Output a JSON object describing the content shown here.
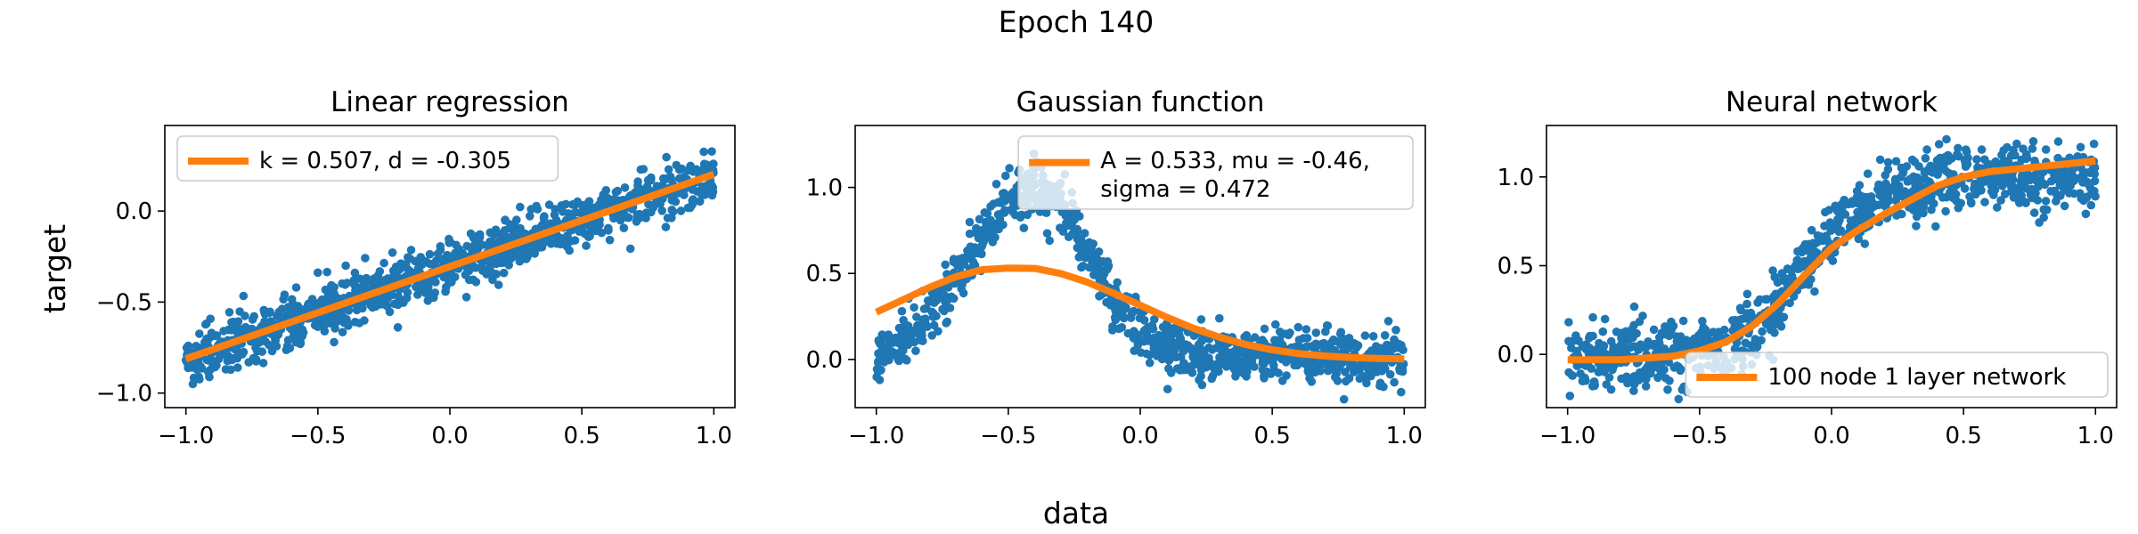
{
  "figure": {
    "suptitle": "Epoch 140",
    "shared_xlabel": "data",
    "shared_ylabel": "target"
  },
  "colors": {
    "scatter": "#1f77b4",
    "fit": "#ff7f0e",
    "axes": "#000000",
    "legend_border": "#cccccc"
  },
  "chart_data": [
    {
      "type": "scatter",
      "title": "Linear regression",
      "xlabel": "",
      "ylabel": "target",
      "xlim": [
        -1.08,
        1.08
      ],
      "ylim": [
        -1.08,
        0.47
      ],
      "xticks": [
        -1.0,
        -0.5,
        0.0,
        0.5,
        1.0
      ],
      "xtick_labels": [
        "−1.0",
        "−0.5",
        "0.0",
        "0.5",
        "1.0"
      ],
      "yticks": [
        -1.0,
        -0.5,
        0.0
      ],
      "ytick_labels": [
        "−1.0",
        "−0.5",
        "0.0"
      ],
      "legend": {
        "location": "upper left",
        "entries": [
          "k = 0.507, d = -0.305"
        ]
      },
      "scatter": {
        "n_points": 1000,
        "trend": [
          {
            "x": -1.0,
            "y": -0.81
          },
          {
            "x": -0.75,
            "y": -0.68
          },
          {
            "x": -0.5,
            "y": -0.56
          },
          {
            "x": -0.25,
            "y": -0.43
          },
          {
            "x": 0.0,
            "y": -0.3
          },
          {
            "x": 0.25,
            "y": -0.18
          },
          {
            "x": 0.5,
            "y": -0.05
          },
          {
            "x": 0.75,
            "y": 0.07
          },
          {
            "x": 1.0,
            "y": 0.2
          }
        ],
        "spread": 0.07
      },
      "fit_line": [
        {
          "x": -1.0,
          "y": -0.812
        },
        {
          "x": 1.0,
          "y": 0.202
        }
      ]
    },
    {
      "type": "scatter",
      "title": "Gaussian function",
      "xlabel": "",
      "ylabel": "",
      "xlim": [
        -1.08,
        1.08
      ],
      "ylim": [
        -0.28,
        1.36
      ],
      "xticks": [
        -1.0,
        -0.5,
        0.0,
        0.5,
        1.0
      ],
      "xtick_labels": [
        "−1.0",
        "−0.5",
        "0.0",
        "0.5",
        "1.0"
      ],
      "yticks": [
        0.0,
        0.5,
        1.0
      ],
      "ytick_labels": [
        "0.0",
        "0.5",
        "1.0"
      ],
      "legend": {
        "location": "upper right",
        "entries": [
          "A = 0.533, mu = -0.46,",
          "sigma = 0.472"
        ]
      },
      "scatter": {
        "n_points": 1000,
        "trend": [
          {
            "x": -1.0,
            "y": 0.02
          },
          {
            "x": -0.9,
            "y": 0.12
          },
          {
            "x": -0.8,
            "y": 0.27
          },
          {
            "x": -0.7,
            "y": 0.47
          },
          {
            "x": -0.6,
            "y": 0.7
          },
          {
            "x": -0.5,
            "y": 0.92
          },
          {
            "x": -0.4,
            "y": 1.0
          },
          {
            "x": -0.3,
            "y": 0.9
          },
          {
            "x": -0.2,
            "y": 0.62
          },
          {
            "x": -0.1,
            "y": 0.35
          },
          {
            "x": 0.0,
            "y": 0.16
          },
          {
            "x": 0.1,
            "y": 0.07
          },
          {
            "x": 0.2,
            "y": 0.03
          },
          {
            "x": 0.4,
            "y": 0.02
          },
          {
            "x": 0.6,
            "y": 0.03
          },
          {
            "x": 0.8,
            "y": 0.02
          },
          {
            "x": 1.0,
            "y": 0.0
          }
        ],
        "spread": 0.08
      },
      "fit_line": [
        {
          "x": -1.0,
          "y": 0.275
        },
        {
          "x": -0.9,
          "y": 0.346
        },
        {
          "x": -0.8,
          "y": 0.418
        },
        {
          "x": -0.7,
          "y": 0.48
        },
        {
          "x": -0.6,
          "y": 0.522
        },
        {
          "x": -0.5,
          "y": 0.531
        },
        {
          "x": -0.4,
          "y": 0.529
        },
        {
          "x": -0.3,
          "y": 0.499
        },
        {
          "x": -0.2,
          "y": 0.449
        },
        {
          "x": -0.1,
          "y": 0.384
        },
        {
          "x": 0.0,
          "y": 0.315
        },
        {
          "x": 0.1,
          "y": 0.245
        },
        {
          "x": 0.2,
          "y": 0.182
        },
        {
          "x": 0.3,
          "y": 0.129
        },
        {
          "x": 0.4,
          "y": 0.087
        },
        {
          "x": 0.5,
          "y": 0.056
        },
        {
          "x": 0.6,
          "y": 0.034
        },
        {
          "x": 0.7,
          "y": 0.02
        },
        {
          "x": 0.8,
          "y": 0.011
        },
        {
          "x": 0.9,
          "y": 0.006
        },
        {
          "x": 1.0,
          "y": 0.003
        }
      ]
    },
    {
      "type": "scatter",
      "title": "Neural network",
      "xlabel": "",
      "ylabel": "",
      "xlim": [
        -1.08,
        1.08
      ],
      "ylim": [
        -0.3,
        1.29
      ],
      "xticks": [
        -1.0,
        -0.5,
        0.0,
        0.5,
        1.0
      ],
      "xtick_labels": [
        "−1.0",
        "−0.5",
        "0.0",
        "0.5",
        "1.0"
      ],
      "yticks": [
        0.0,
        0.5,
        1.0
      ],
      "ytick_labels": [
        "0.0",
        "0.5",
        "1.0"
      ],
      "legend": {
        "location": "lower right",
        "entries": [
          "100 node 1 layer network"
        ]
      },
      "scatter": {
        "n_points": 1000,
        "trend": [
          {
            "x": -1.0,
            "y": 0.0
          },
          {
            "x": -0.6,
            "y": 0.0
          },
          {
            "x": -0.4,
            "y": 0.05
          },
          {
            "x": -0.3,
            "y": 0.15
          },
          {
            "x": -0.2,
            "y": 0.3
          },
          {
            "x": -0.1,
            "y": 0.5
          },
          {
            "x": 0.0,
            "y": 0.65
          },
          {
            "x": 0.1,
            "y": 0.8
          },
          {
            "x": 0.2,
            "y": 0.88
          },
          {
            "x": 0.4,
            "y": 0.97
          },
          {
            "x": 0.6,
            "y": 1.0
          },
          {
            "x": 1.0,
            "y": 1.0
          }
        ],
        "spread": 0.09
      },
      "fit_line": [
        {
          "x": -1.0,
          "y": -0.03
        },
        {
          "x": -0.8,
          "y": -0.03
        },
        {
          "x": -0.6,
          "y": -0.01
        },
        {
          "x": -0.5,
          "y": 0.02
        },
        {
          "x": -0.4,
          "y": 0.07
        },
        {
          "x": -0.3,
          "y": 0.16
        },
        {
          "x": -0.2,
          "y": 0.29
        },
        {
          "x": -0.1,
          "y": 0.45
        },
        {
          "x": 0.0,
          "y": 0.6
        },
        {
          "x": 0.1,
          "y": 0.7
        },
        {
          "x": 0.2,
          "y": 0.79
        },
        {
          "x": 0.3,
          "y": 0.87
        },
        {
          "x": 0.4,
          "y": 0.95
        },
        {
          "x": 0.5,
          "y": 1.0
        },
        {
          "x": 0.6,
          "y": 1.03
        },
        {
          "x": 0.8,
          "y": 1.06
        },
        {
          "x": 1.0,
          "y": 1.09
        }
      ]
    }
  ]
}
